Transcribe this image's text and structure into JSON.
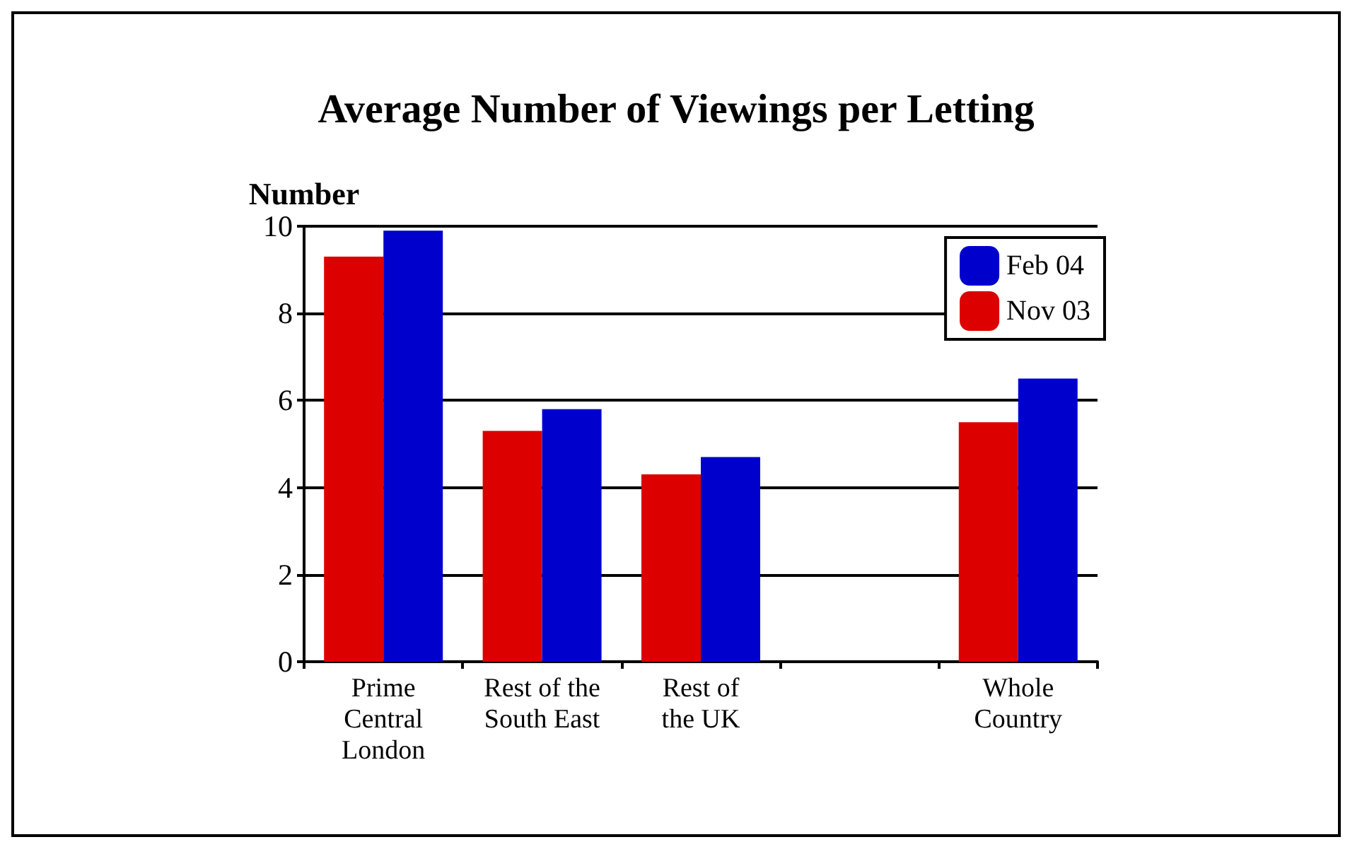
{
  "chart_data": {
    "type": "bar",
    "title": "Average Number of Viewings per Letting",
    "ylabel": "Number",
    "categories": [
      "Prime\nCentral\nLondon",
      "Rest of the\nSouth East",
      "Rest of\nthe UK",
      null,
      "Whole\nCountry"
    ],
    "series": [
      {
        "name": "Nov 03",
        "color": "#dd0000",
        "values": [
          9.3,
          5.3,
          4.3,
          null,
          5.5
        ]
      },
      {
        "name": "Feb 04",
        "color": "#0000cc",
        "values": [
          9.9,
          5.8,
          4.7,
          null,
          6.5
        ]
      }
    ],
    "ylim": [
      0,
      10
    ],
    "yticks": [
      0,
      2,
      4,
      6,
      8,
      10
    ],
    "grid": "y",
    "legend": "top right"
  }
}
